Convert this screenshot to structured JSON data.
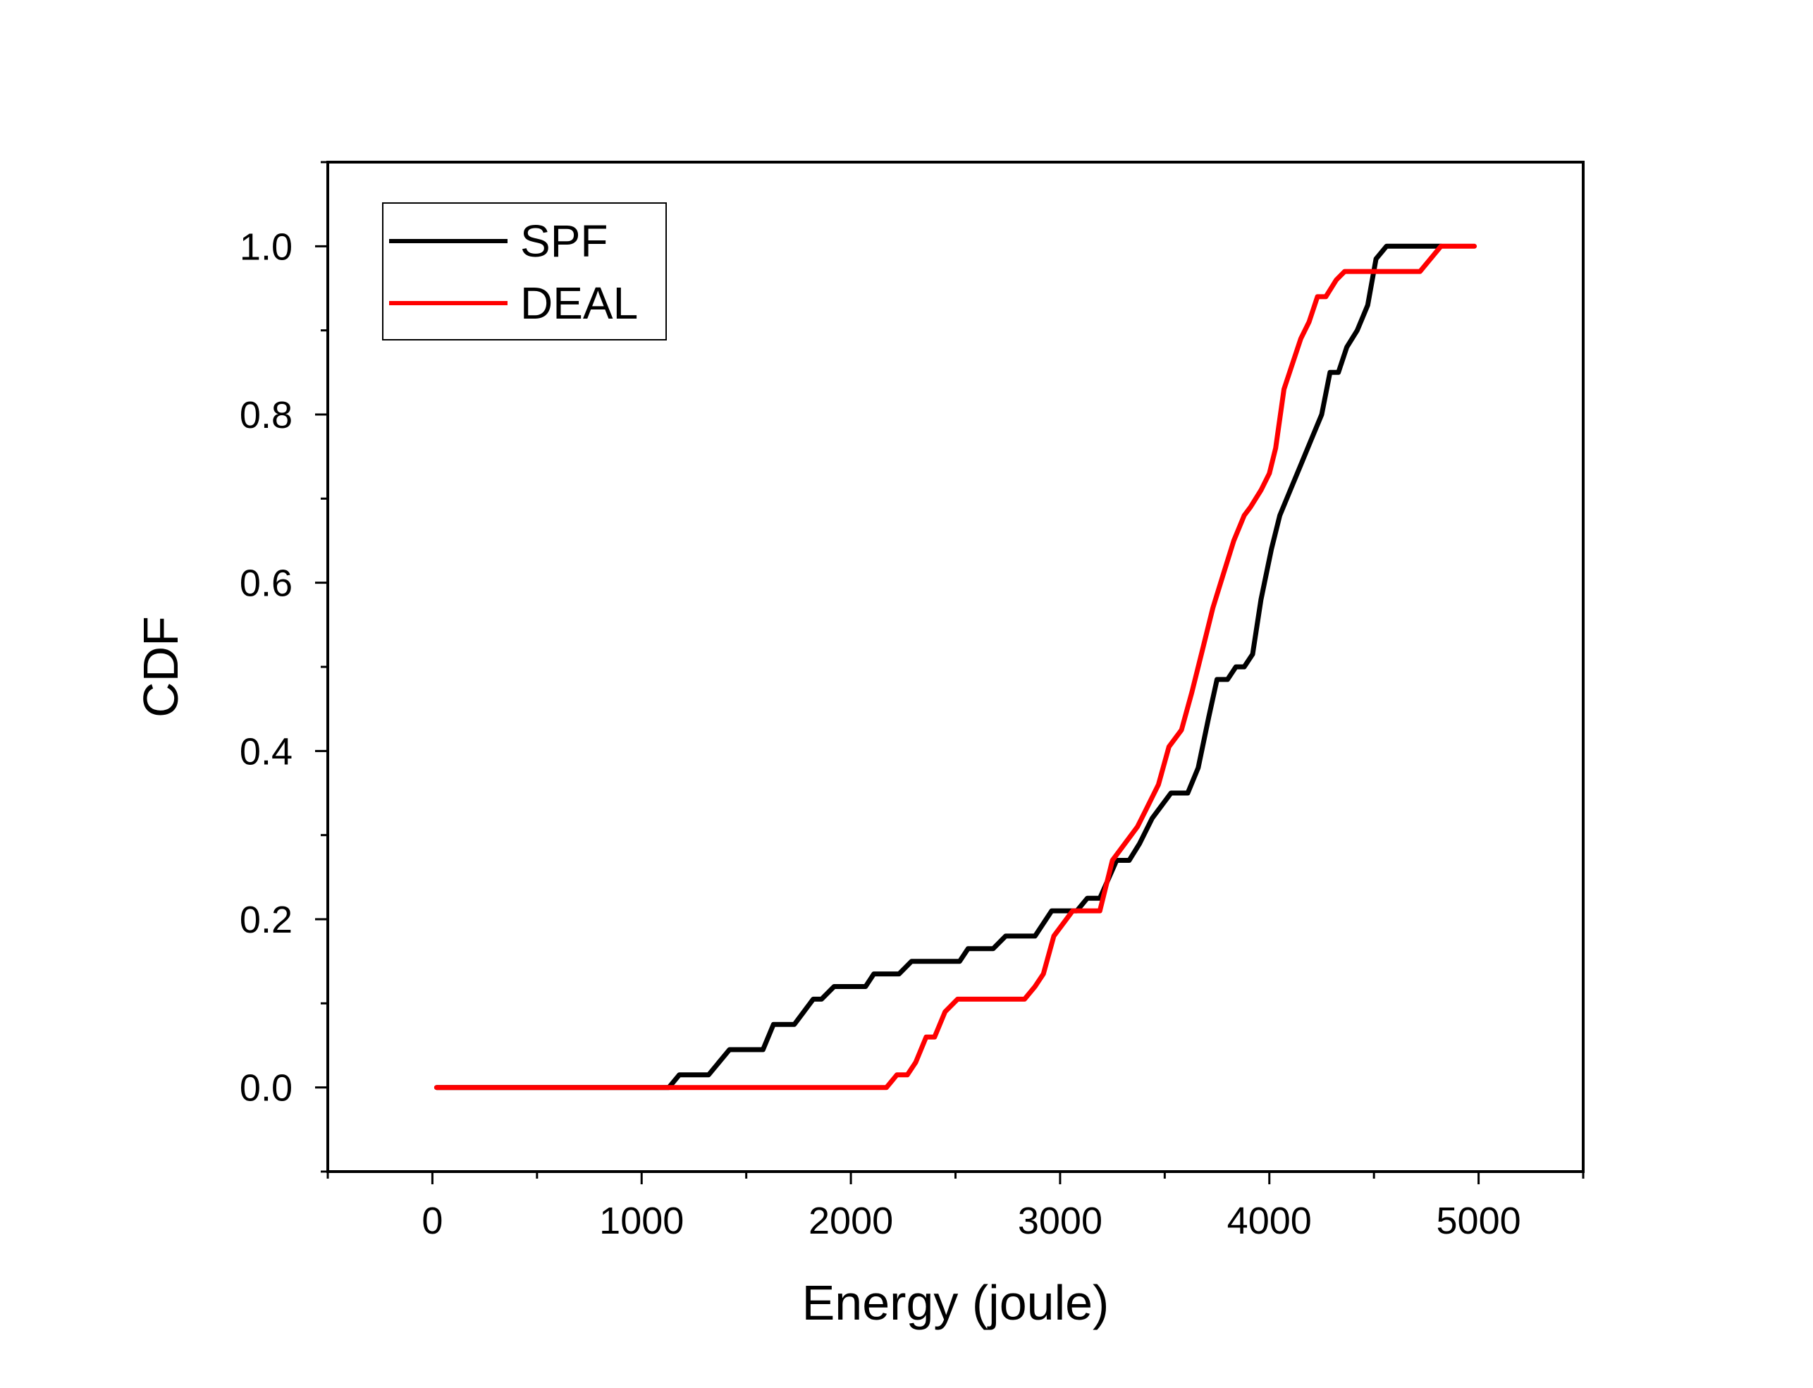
{
  "chart_data": {
    "type": "line",
    "title": "",
    "xlabel": "Energy (joule)",
    "ylabel": "CDF",
    "xlim": [
      -500,
      5500
    ],
    "ylim": [
      -0.1,
      1.1
    ],
    "xticks": [
      0,
      1000,
      2000,
      3000,
      4000,
      5000
    ],
    "xtick_labels": [
      "0",
      "1000",
      "2000",
      "3000",
      "4000",
      "5000"
    ],
    "yticks": [
      0.0,
      0.2,
      0.4,
      0.6,
      0.8,
      1.0
    ],
    "ytick_labels": [
      "0.0",
      "0.2",
      "0.4",
      "0.6",
      "0.8",
      "1.0"
    ],
    "grid": false,
    "legend_position": "top-left",
    "series": [
      {
        "name": "SPF",
        "color": "#000000",
        "x": [
          20,
          1130,
          1180,
          1320,
          1420,
          1580,
          1630,
          1730,
          1820,
          1860,
          1920,
          2070,
          2110,
          2230,
          2290,
          2520,
          2560,
          2680,
          2740,
          2880,
          2960,
          3080,
          3130,
          3190,
          3270,
          3330,
          3380,
          3440,
          3530,
          3610,
          3660,
          3710,
          3750,
          3800,
          3840,
          3880,
          3920,
          3960,
          4010,
          4050,
          4100,
          4150,
          4200,
          4250,
          4290,
          4330,
          4370,
          4420,
          4470,
          4510,
          4560,
          4600,
          4650,
          4820
        ],
        "y": [
          0.0,
          0.0,
          0.015,
          0.015,
          0.045,
          0.045,
          0.075,
          0.075,
          0.105,
          0.105,
          0.12,
          0.12,
          0.135,
          0.135,
          0.15,
          0.15,
          0.165,
          0.165,
          0.18,
          0.18,
          0.21,
          0.21,
          0.225,
          0.225,
          0.27,
          0.27,
          0.29,
          0.32,
          0.35,
          0.35,
          0.38,
          0.44,
          0.485,
          0.485,
          0.5,
          0.5,
          0.515,
          0.58,
          0.64,
          0.68,
          0.71,
          0.74,
          0.77,
          0.8,
          0.85,
          0.85,
          0.88,
          0.9,
          0.93,
          0.985,
          1.0,
          1.0,
          1.0,
          1.0
        ]
      },
      {
        "name": "DEAL",
        "color": "#ff0000",
        "x": [
          20,
          2170,
          2220,
          2270,
          2310,
          2360,
          2400,
          2450,
          2510,
          2560,
          2620,
          2830,
          2880,
          2920,
          2970,
          3060,
          3100,
          3190,
          3250,
          3310,
          3370,
          3410,
          3470,
          3520,
          3580,
          3630,
          3680,
          3730,
          3780,
          3830,
          3880,
          3910,
          3960,
          4000,
          4030,
          4070,
          4110,
          4150,
          4190,
          4230,
          4270,
          4320,
          4360,
          4420,
          4720,
          4820,
          4980
        ],
        "y": [
          0.0,
          0.0,
          0.015,
          0.015,
          0.03,
          0.06,
          0.06,
          0.09,
          0.105,
          0.105,
          0.105,
          0.105,
          0.12,
          0.135,
          0.18,
          0.21,
          0.21,
          0.21,
          0.27,
          0.29,
          0.31,
          0.33,
          0.36,
          0.405,
          0.425,
          0.47,
          0.52,
          0.57,
          0.61,
          0.65,
          0.68,
          0.69,
          0.71,
          0.73,
          0.76,
          0.83,
          0.86,
          0.89,
          0.91,
          0.94,
          0.94,
          0.96,
          0.97,
          0.97,
          0.97,
          1.0,
          1.0
        ]
      }
    ]
  }
}
